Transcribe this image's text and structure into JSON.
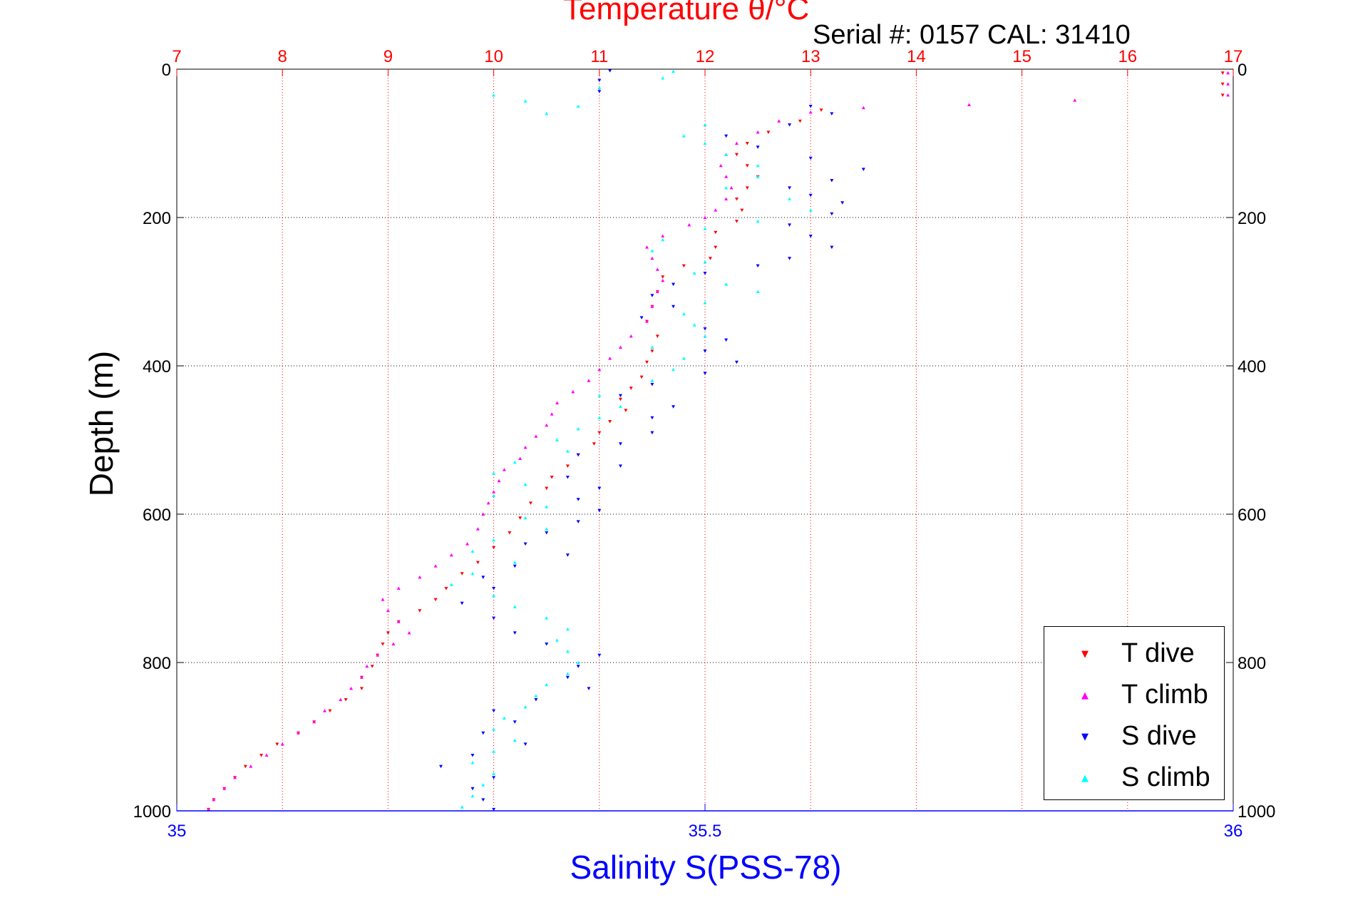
{
  "header": {
    "top_title": "Temperature θ/°C",
    "serial": "Serial #: 0157  CAL: 31410"
  },
  "colors": {
    "t_dive": "#ff0000",
    "t_climb": "#ff00ff",
    "s_dive": "#0000ff",
    "s_climb": "#00ffff",
    "top_axis": "#ff0000",
    "bottom_axis": "#0000ff"
  },
  "legend": [
    {
      "label": "T dive",
      "color": "#ff0000",
      "marker": "triangle-down"
    },
    {
      "label": "T climb",
      "color": "#ff00ff",
      "marker": "triangle-up"
    },
    {
      "label": "S dive",
      "color": "#0000ff",
      "marker": "triangle-down"
    },
    {
      "label": "S climb",
      "color": "#00ffff",
      "marker": "triangle-up"
    }
  ],
  "chart_data": {
    "type": "scatter",
    "title": "Temperature θ/°C",
    "ylabel": "Depth (m)",
    "xlabel": "Salinity S(PSS-78)",
    "ylim": [
      0,
      1000
    ],
    "y_reversed": true,
    "yticks": [
      "0",
      "200",
      "400",
      "600",
      "800",
      "1000"
    ],
    "top_axis": {
      "label": "Temperature θ/°C",
      "range": [
        7,
        17
      ],
      "ticks": [
        "7",
        "8",
        "9",
        "10",
        "11",
        "12",
        "13",
        "14",
        "15",
        "16",
        "17"
      ]
    },
    "bottom_axis": {
      "label": "Salinity S(PSS-78)",
      "range": [
        35,
        36
      ],
      "ticks": [
        "35",
        "35.5",
        "36"
      ]
    },
    "grid": true,
    "legend_position": "bottom-right",
    "series": [
      {
        "name": "T dive",
        "axis": "temperature",
        "points": [
          [
            16.9,
            5
          ],
          [
            16.9,
            20
          ],
          [
            16.9,
            35
          ],
          [
            13.1,
            55
          ],
          [
            12.9,
            70
          ],
          [
            12.6,
            85
          ],
          [
            12.4,
            100
          ],
          [
            12.3,
            115
          ],
          [
            12.4,
            130
          ],
          [
            12.5,
            145
          ],
          [
            12.4,
            160
          ],
          [
            12.3,
            175
          ],
          [
            12.35,
            190
          ],
          [
            12.3,
            205
          ],
          [
            12.1,
            220
          ],
          [
            12.1,
            240
          ],
          [
            12.05,
            255
          ],
          [
            11.8,
            265
          ],
          [
            11.6,
            280
          ],
          [
            11.55,
            300
          ],
          [
            11.5,
            320
          ],
          [
            11.45,
            340
          ],
          [
            11.55,
            360
          ],
          [
            11.5,
            380
          ],
          [
            11.45,
            395
          ],
          [
            11.4,
            415
          ],
          [
            11.3,
            430
          ],
          [
            11.2,
            445
          ],
          [
            11.25,
            460
          ],
          [
            11.1,
            475
          ],
          [
            11.0,
            490
          ],
          [
            10.95,
            505
          ],
          [
            10.8,
            520
          ],
          [
            10.7,
            535
          ],
          [
            10.55,
            550
          ],
          [
            10.5,
            565
          ],
          [
            10.35,
            585
          ],
          [
            10.25,
            605
          ],
          [
            10.15,
            625
          ],
          [
            10.0,
            645
          ],
          [
            9.85,
            665
          ],
          [
            9.7,
            680
          ],
          [
            9.55,
            700
          ],
          [
            9.45,
            715
          ],
          [
            9.3,
            730
          ],
          [
            9.1,
            745
          ],
          [
            9.0,
            760
          ],
          [
            8.95,
            775
          ],
          [
            8.9,
            790
          ],
          [
            8.85,
            805
          ],
          [
            8.75,
            820
          ],
          [
            8.75,
            835
          ],
          [
            8.6,
            850
          ],
          [
            8.45,
            865
          ],
          [
            8.3,
            880
          ],
          [
            8.15,
            895
          ],
          [
            7.95,
            910
          ],
          [
            7.8,
            925
          ],
          [
            7.65,
            940
          ],
          [
            7.55,
            955
          ],
          [
            7.45,
            970
          ],
          [
            7.35,
            985
          ],
          [
            7.3,
            998
          ]
        ]
      },
      {
        "name": "T climb",
        "axis": "temperature",
        "points": [
          [
            16.95,
            5
          ],
          [
            16.95,
            20
          ],
          [
            16.95,
            35
          ],
          [
            15.5,
            42
          ],
          [
            14.5,
            48
          ],
          [
            13.5,
            52
          ],
          [
            13.0,
            58
          ],
          [
            12.7,
            70
          ],
          [
            12.5,
            85
          ],
          [
            12.3,
            100
          ],
          [
            12.2,
            115
          ],
          [
            12.15,
            130
          ],
          [
            12.2,
            145
          ],
          [
            12.25,
            160
          ],
          [
            12.2,
            175
          ],
          [
            12.1,
            190
          ],
          [
            12.0,
            200
          ],
          [
            11.85,
            210
          ],
          [
            11.6,
            225
          ],
          [
            11.45,
            240
          ],
          [
            11.5,
            255
          ],
          [
            11.55,
            270
          ],
          [
            11.6,
            285
          ],
          [
            11.55,
            300
          ],
          [
            11.5,
            320
          ],
          [
            11.45,
            340
          ],
          [
            11.3,
            360
          ],
          [
            11.2,
            375
          ],
          [
            11.1,
            390
          ],
          [
            11.0,
            405
          ],
          [
            10.9,
            420
          ],
          [
            10.75,
            435
          ],
          [
            10.6,
            450
          ],
          [
            10.55,
            465
          ],
          [
            10.5,
            480
          ],
          [
            10.4,
            495
          ],
          [
            10.3,
            510
          ],
          [
            10.25,
            525
          ],
          [
            10.1,
            540
          ],
          [
            10.05,
            555
          ],
          [
            10.0,
            570
          ],
          [
            9.95,
            585
          ],
          [
            9.9,
            600
          ],
          [
            9.85,
            620
          ],
          [
            9.75,
            640
          ],
          [
            9.6,
            655
          ],
          [
            9.45,
            670
          ],
          [
            9.3,
            685
          ],
          [
            9.1,
            700
          ],
          [
            8.95,
            715
          ],
          [
            9.0,
            730
          ],
          [
            9.1,
            745
          ],
          [
            9.2,
            760
          ],
          [
            9.05,
            775
          ],
          [
            8.9,
            790
          ],
          [
            8.8,
            805
          ],
          [
            8.75,
            820
          ],
          [
            8.65,
            835
          ],
          [
            8.55,
            850
          ],
          [
            8.4,
            865
          ],
          [
            8.3,
            880
          ],
          [
            8.15,
            895
          ],
          [
            8.0,
            910
          ],
          [
            7.85,
            925
          ],
          [
            7.7,
            940
          ],
          [
            7.55,
            955
          ],
          [
            7.45,
            970
          ],
          [
            7.35,
            985
          ],
          [
            7.3,
            998
          ]
        ]
      },
      {
        "name": "S dive",
        "axis": "salinity",
        "points": [
          [
            35.41,
            2
          ],
          [
            35.4,
            15
          ],
          [
            35.4,
            30
          ],
          [
            35.6,
            50
          ],
          [
            35.62,
            60
          ],
          [
            35.58,
            75
          ],
          [
            35.52,
            90
          ],
          [
            35.55,
            105
          ],
          [
            35.6,
            120
          ],
          [
            35.65,
            135
          ],
          [
            35.62,
            150
          ],
          [
            35.58,
            160
          ],
          [
            35.6,
            170
          ],
          [
            35.63,
            180
          ],
          [
            35.62,
            195
          ],
          [
            35.58,
            210
          ],
          [
            35.6,
            225
          ],
          [
            35.62,
            240
          ],
          [
            35.58,
            255
          ],
          [
            35.55,
            265
          ],
          [
            35.5,
            275
          ],
          [
            35.47,
            290
          ],
          [
            35.45,
            305
          ],
          [
            35.47,
            320
          ],
          [
            35.44,
            335
          ],
          [
            35.5,
            350
          ],
          [
            35.52,
            365
          ],
          [
            35.5,
            380
          ],
          [
            35.53,
            395
          ],
          [
            35.5,
            410
          ],
          [
            35.45,
            425
          ],
          [
            35.42,
            440
          ],
          [
            35.47,
            455
          ],
          [
            35.45,
            470
          ],
          [
            35.45,
            490
          ],
          [
            35.42,
            505
          ],
          [
            35.38,
            520
          ],
          [
            35.42,
            535
          ],
          [
            35.37,
            550
          ],
          [
            35.4,
            565
          ],
          [
            35.38,
            580
          ],
          [
            35.4,
            595
          ],
          [
            35.38,
            610
          ],
          [
            35.35,
            625
          ],
          [
            35.33,
            640
          ],
          [
            35.37,
            655
          ],
          [
            35.32,
            670
          ],
          [
            35.29,
            685
          ],
          [
            35.3,
            700
          ],
          [
            35.27,
            720
          ],
          [
            35.3,
            740
          ],
          [
            35.32,
            760
          ],
          [
            35.35,
            775
          ],
          [
            35.4,
            790
          ],
          [
            35.38,
            805
          ],
          [
            35.37,
            820
          ],
          [
            35.39,
            835
          ],
          [
            35.34,
            850
          ],
          [
            35.3,
            865
          ],
          [
            35.32,
            880
          ],
          [
            35.29,
            895
          ],
          [
            35.33,
            910
          ],
          [
            35.28,
            925
          ],
          [
            35.25,
            940
          ],
          [
            35.3,
            955
          ],
          [
            35.28,
            970
          ],
          [
            35.29,
            985
          ],
          [
            35.3,
            998
          ]
        ]
      },
      {
        "name": "S climb",
        "axis": "salinity",
        "points": [
          [
            35.47,
            3
          ],
          [
            35.46,
            12
          ],
          [
            35.4,
            25
          ],
          [
            35.3,
            35
          ],
          [
            35.33,
            43
          ],
          [
            35.38,
            50
          ],
          [
            35.35,
            60
          ],
          [
            35.5,
            75
          ],
          [
            35.48,
            90
          ],
          [
            35.5,
            100
          ],
          [
            35.52,
            115
          ],
          [
            35.55,
            130
          ],
          [
            35.55,
            145
          ],
          [
            35.52,
            160
          ],
          [
            35.58,
            175
          ],
          [
            35.6,
            190
          ],
          [
            35.55,
            205
          ],
          [
            35.5,
            215
          ],
          [
            35.46,
            230
          ],
          [
            35.45,
            245
          ],
          [
            35.5,
            260
          ],
          [
            35.49,
            275
          ],
          [
            35.52,
            290
          ],
          [
            35.55,
            300
          ],
          [
            35.5,
            315
          ],
          [
            35.48,
            330
          ],
          [
            35.49,
            345
          ],
          [
            35.5,
            360
          ],
          [
            35.45,
            375
          ],
          [
            35.48,
            390
          ],
          [
            35.47,
            405
          ],
          [
            35.45,
            420
          ],
          [
            35.4,
            440
          ],
          [
            35.42,
            455
          ],
          [
            35.4,
            470
          ],
          [
            35.38,
            485
          ],
          [
            35.36,
            500
          ],
          [
            35.37,
            515
          ],
          [
            35.32,
            530
          ],
          [
            35.3,
            545
          ],
          [
            35.33,
            560
          ],
          [
            35.3,
            575
          ],
          [
            35.35,
            590
          ],
          [
            35.33,
            605
          ],
          [
            35.35,
            620
          ],
          [
            35.3,
            635
          ],
          [
            35.28,
            650
          ],
          [
            35.32,
            665
          ],
          [
            35.28,
            680
          ],
          [
            35.26,
            695
          ],
          [
            35.3,
            710
          ],
          [
            35.32,
            725
          ],
          [
            35.35,
            740
          ],
          [
            35.37,
            755
          ],
          [
            35.36,
            770
          ],
          [
            35.37,
            785
          ],
          [
            35.38,
            800
          ],
          [
            35.37,
            815
          ],
          [
            35.35,
            830
          ],
          [
            35.34,
            845
          ],
          [
            35.33,
            860
          ],
          [
            35.31,
            875
          ],
          [
            35.3,
            890
          ],
          [
            35.32,
            905
          ],
          [
            35.3,
            920
          ],
          [
            35.28,
            935
          ],
          [
            35.3,
            950
          ],
          [
            35.29,
            965
          ],
          [
            35.28,
            980
          ],
          [
            35.27,
            995
          ]
        ]
      }
    ]
  }
}
